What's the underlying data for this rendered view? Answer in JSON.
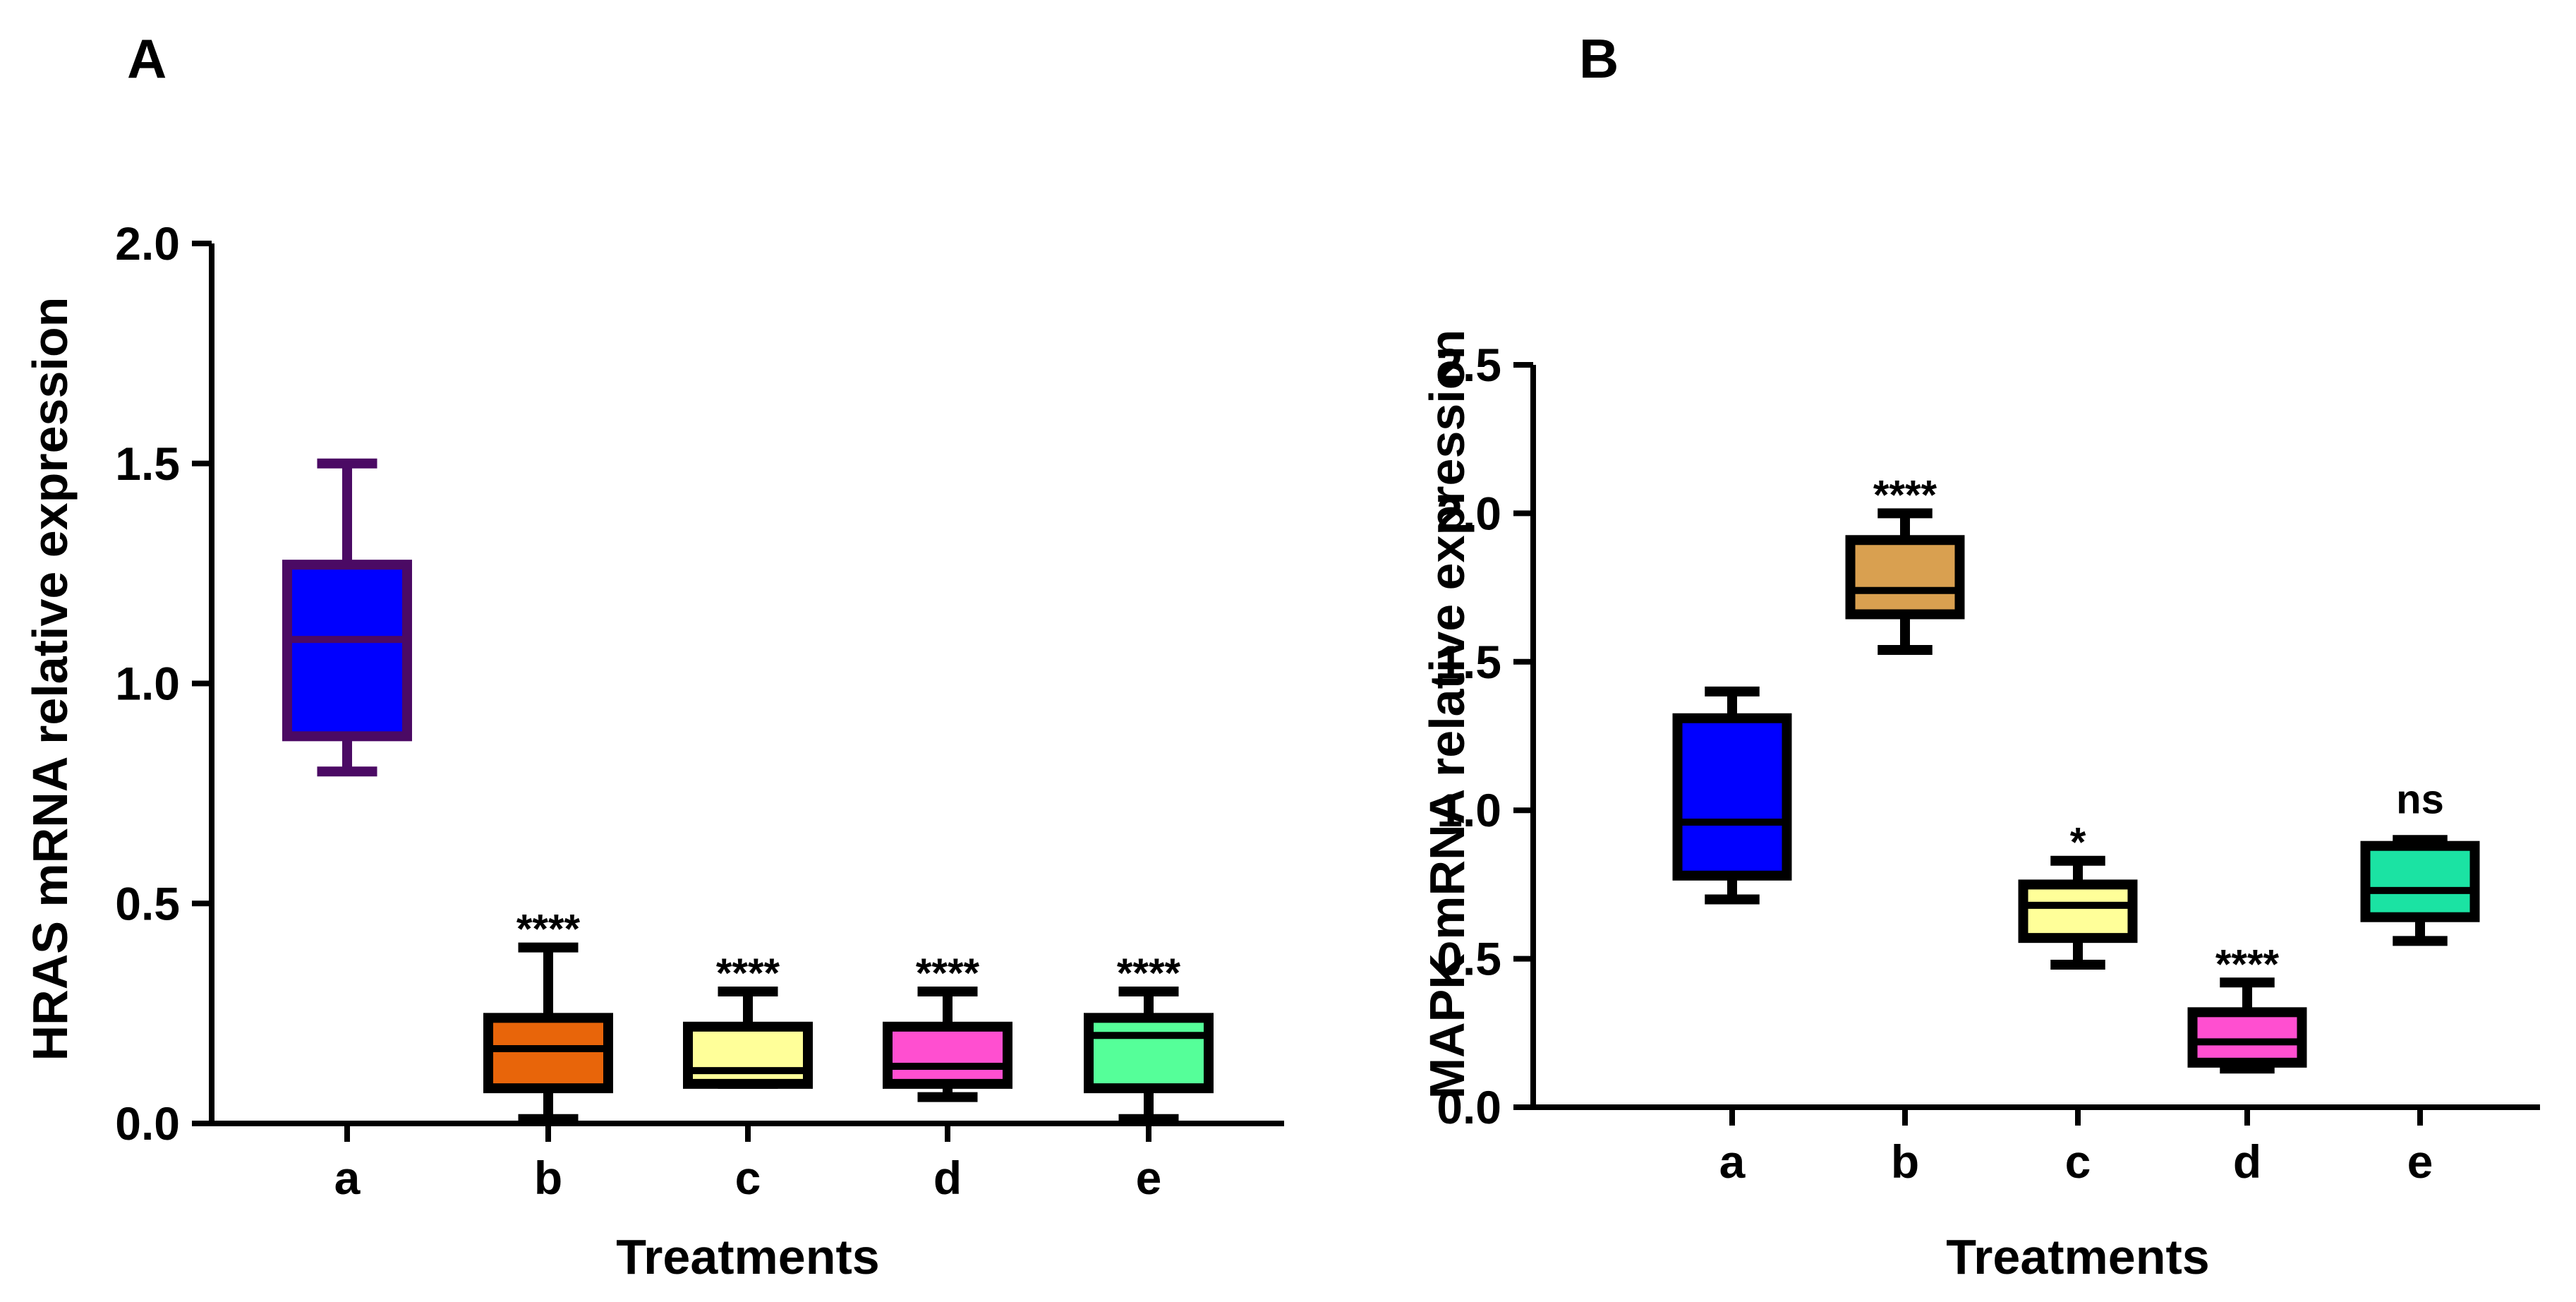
{
  "chart_data": [
    {
      "panel": "A",
      "type": "box",
      "xlabel": "Treatments",
      "ylabel": "HRAS mRNA relative expression",
      "ylim": [
        0,
        2.0
      ],
      "yticks": [
        0.0,
        0.5,
        1.0,
        1.5,
        2.0
      ],
      "ytick_labels": [
        "0.0",
        "0.5",
        "1.0",
        "1.5",
        "2.0"
      ],
      "categories": [
        "a",
        "b",
        "c",
        "d",
        "e"
      ],
      "boxes": [
        {
          "category": "a",
          "min": 0.8,
          "q1": 0.88,
          "median": 1.1,
          "q3": 1.27,
          "max": 1.5,
          "fill": "#0000ff",
          "stroke": "#4b0a64",
          "significance": ""
        },
        {
          "category": "b",
          "min": 0.01,
          "q1": 0.08,
          "median": 0.17,
          "q3": 0.24,
          "max": 0.4,
          "fill": "#e8650a",
          "stroke": "#000000",
          "significance": "****"
        },
        {
          "category": "c",
          "min": 0.09,
          "q1": 0.09,
          "median": 0.12,
          "q3": 0.22,
          "max": 0.3,
          "fill": "#ffff99",
          "stroke": "#000000",
          "significance": "****"
        },
        {
          "category": "d",
          "min": 0.06,
          "q1": 0.09,
          "median": 0.13,
          "q3": 0.22,
          "max": 0.3,
          "fill": "#ff4fd0",
          "stroke": "#000000",
          "significance": "****"
        },
        {
          "category": "e",
          "min": 0.01,
          "q1": 0.08,
          "median": 0.2,
          "q3": 0.24,
          "max": 0.3,
          "fill": "#55ff99",
          "stroke": "#000000",
          "significance": "****"
        }
      ]
    },
    {
      "panel": "B",
      "type": "box",
      "xlabel": "Treatments",
      "ylabel": "MAPK mRNA relative expression",
      "ylim": [
        0,
        2.5
      ],
      "yticks": [
        0.0,
        0.5,
        1.0,
        1.5,
        2.0,
        2.5
      ],
      "ytick_labels": [
        "0.0",
        "0.5",
        "1.0",
        "1.5",
        "2.0",
        "2.5"
      ],
      "categories": [
        "a",
        "b",
        "c",
        "d",
        "e"
      ],
      "boxes": [
        {
          "category": "a",
          "min": 0.7,
          "q1": 0.78,
          "median": 0.96,
          "q3": 1.31,
          "max": 1.4,
          "fill": "#0000ff",
          "stroke": "#000000",
          "significance": ""
        },
        {
          "category": "b",
          "min": 1.54,
          "q1": 1.66,
          "median": 1.74,
          "q3": 1.91,
          "max": 2.0,
          "fill": "#d9a050",
          "stroke": "#000000",
          "significance": "****"
        },
        {
          "category": "c",
          "min": 0.48,
          "q1": 0.57,
          "median": 0.68,
          "q3": 0.75,
          "max": 0.83,
          "fill": "#ffff99",
          "stroke": "#000000",
          "significance": "*"
        },
        {
          "category": "d",
          "min": 0.13,
          "q1": 0.15,
          "median": 0.22,
          "q3": 0.32,
          "max": 0.42,
          "fill": "#ff4fd0",
          "stroke": "#000000",
          "significance": "****"
        },
        {
          "category": "e",
          "min": 0.56,
          "q1": 0.64,
          "median": 0.73,
          "q3": 0.88,
          "max": 0.9,
          "fill": "#1be3a3",
          "stroke": "#000000",
          "significance": "ns"
        }
      ]
    }
  ]
}
